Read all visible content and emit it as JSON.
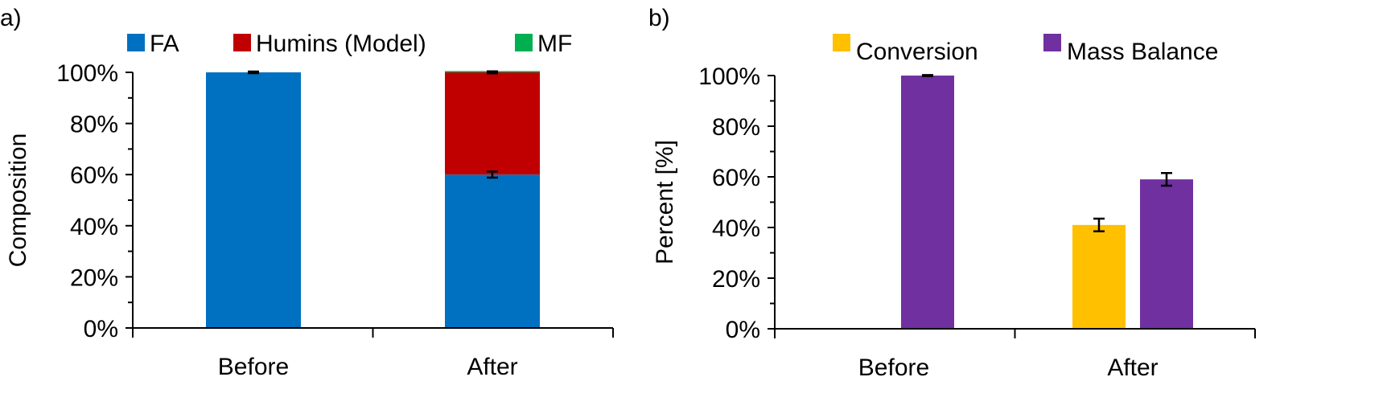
{
  "chart_data": [
    {
      "panel_label": "a)",
      "type": "bar",
      "stacked": true,
      "categories": [
        "Before",
        "After"
      ],
      "series": [
        {
          "name": "FA",
          "color": "#0070C0",
          "values": [
            100,
            60
          ],
          "error": [
            0.3,
            1.2
          ]
        },
        {
          "name": "Humins (Model)",
          "color": "#C00000",
          "values": [
            0,
            40
          ],
          "error": [
            0,
            0.4
          ]
        },
        {
          "name": "MF",
          "color": "#00B050",
          "values": [
            0,
            0.5
          ],
          "error": [
            0,
            0
          ]
        }
      ],
      "ylabel": "Composition",
      "xlabel": "",
      "ylim": [
        0,
        100
      ],
      "yticks": [
        "0%",
        "20%",
        "40%",
        "60%",
        "80%",
        "100%"
      ],
      "grid": false,
      "legend": "top"
    },
    {
      "panel_label": "b)",
      "type": "bar",
      "stacked": false,
      "categories": [
        "Before",
        "After"
      ],
      "series": [
        {
          "name": "Conversion",
          "color": "#FFC000",
          "values": [
            0,
            41
          ],
          "error": [
            0,
            2.5
          ]
        },
        {
          "name": "Mass Balance",
          "color": "#7030A0",
          "values": [
            100,
            59
          ],
          "error": [
            0.2,
            2.5
          ]
        }
      ],
      "ylabel": "Percent [%]",
      "xlabel": "",
      "ylim": [
        0,
        100
      ],
      "yticks": [
        "0%",
        "20%",
        "40%",
        "60%",
        "80%",
        "100%"
      ],
      "grid": false,
      "legend": "top-right"
    }
  ]
}
